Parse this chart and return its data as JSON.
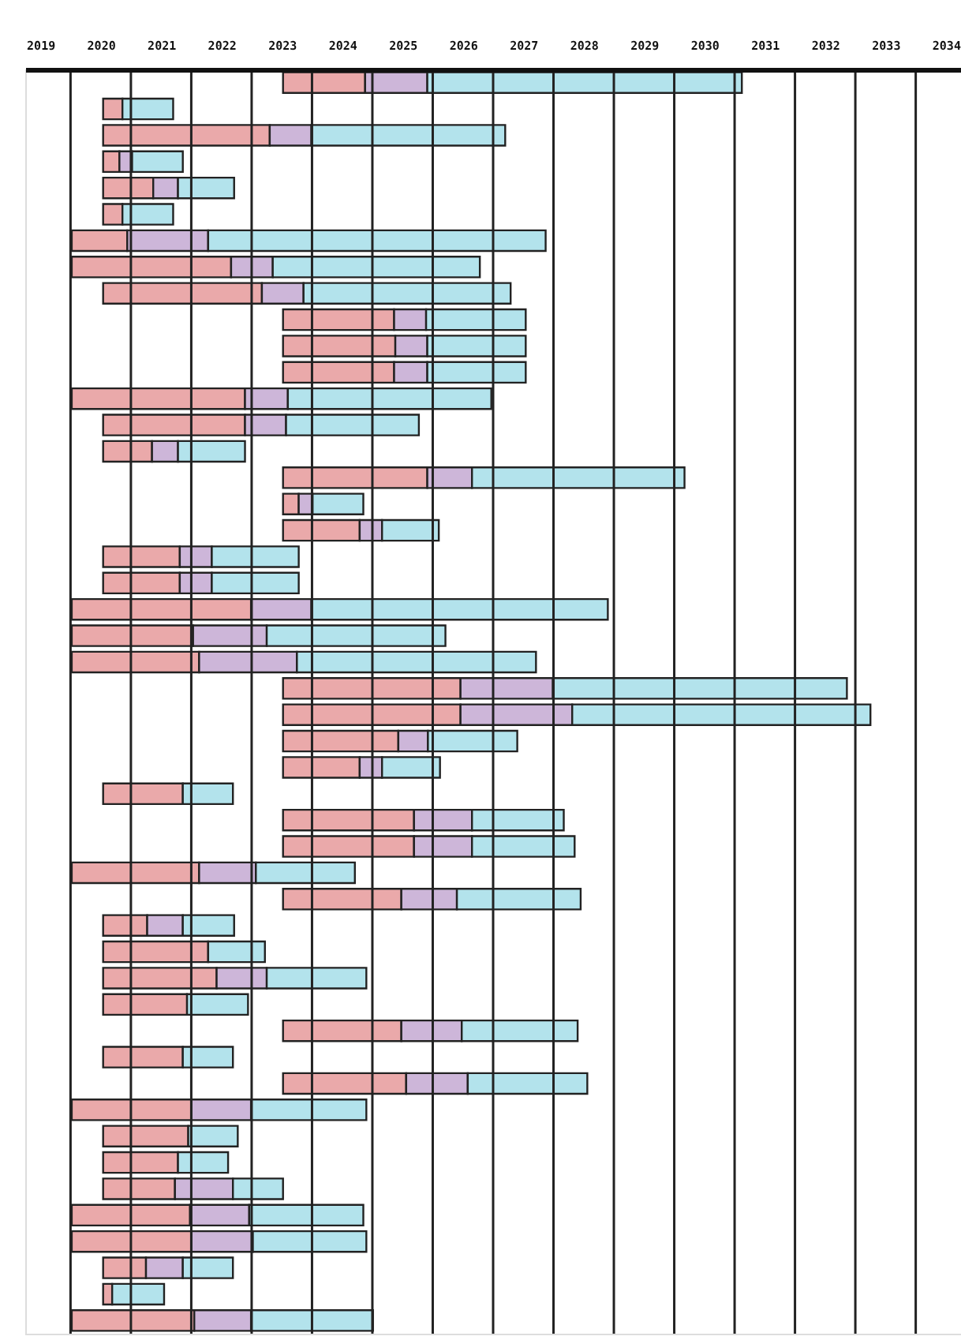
{
  "chart_data": {
    "type": "bar",
    "orientation": "horizontal",
    "categories": [
      null,
      null,
      null,
      null,
      null,
      null,
      null,
      null,
      null,
      null,
      null,
      null,
      null,
      null,
      null,
      null,
      null,
      null,
      null,
      null,
      null,
      null,
      null,
      null,
      null,
      null,
      null,
      null,
      null,
      null,
      null,
      null,
      null,
      null,
      null,
      null,
      null,
      null,
      null,
      null,
      null,
      null,
      null,
      null,
      null,
      null,
      null,
      null
    ],
    "series": [
      {
        "color": "#eaa9aa",
        "base": [
          2023.02,
          2020.04,
          2020.04,
          2020.04,
          2020.04,
          2020.04,
          2019.52,
          2019.52,
          2020.04,
          2023.02,
          2023.02,
          2023.02,
          2019.52,
          2020.04,
          2020.04,
          2023.02,
          2023.02,
          2023.02,
          2020.04,
          2020.04,
          2019.52,
          2019.52,
          2019.52,
          2023.02,
          2023.02,
          2023.02,
          2023.02,
          2020.04,
          2023.02,
          2023.02,
          2019.52,
          2023.02,
          2020.04,
          2020.04,
          2020.04,
          2020.04,
          2023.02,
          2020.04,
          2023.02,
          2019.52,
          2020.04,
          2020.04,
          2020.04,
          2019.52,
          2019.52,
          2020.04,
          2020.04,
          2019.52
        ],
        "values": [
          1.36,
          0.32,
          2.76,
          0.27,
          0.83,
          0.32,
          0.92,
          2.64,
          2.63,
          1.84,
          1.86,
          1.84,
          2.87,
          2.35,
          0.81,
          2.39,
          0.26,
          1.27,
          1.27,
          1.27,
          2.97,
          2.01,
          2.11,
          2.94,
          2.94,
          1.91,
          1.27,
          1.32,
          2.17,
          2.17,
          2.11,
          1.96,
          0.73,
          1.74,
          1.88,
          1.39,
          1.96,
          1.32,
          2.04,
          1.98,
          1.41,
          1.24,
          1.19,
          1.96,
          1.98,
          0.71,
          0.15,
          2.03
        ]
      },
      {
        "color": "#cdb6d9",
        "base": [
          2024.38,
          null,
          2022.8,
          2020.31,
          2020.87,
          null,
          2020.44,
          2022.16,
          2022.67,
          2024.86,
          2024.88,
          2024.86,
          2022.39,
          2022.39,
          2020.85,
          2025.41,
          2023.28,
          2024.29,
          2021.31,
          2021.31,
          2022.49,
          2021.53,
          2021.63,
          2025.96,
          2025.96,
          2024.93,
          2024.29,
          null,
          2025.19,
          2025.19,
          2021.63,
          2024.98,
          2020.77,
          null,
          2021.92,
          null,
          2024.98,
          null,
          2025.06,
          2021.5,
          null,
          null,
          2021.23,
          2021.48,
          2021.5,
          2020.75,
          null,
          2021.55
        ],
        "values": [
          1.03,
          null,
          0.69,
          0.21,
          0.41,
          null,
          1.34,
          0.69,
          0.69,
          0.53,
          0.53,
          0.55,
          0.71,
          0.68,
          0.43,
          0.74,
          0.23,
          0.37,
          0.53,
          0.53,
          1.0,
          1.22,
          1.62,
          1.53,
          1.85,
          0.49,
          0.37,
          null,
          0.96,
          0.96,
          0.94,
          0.92,
          0.59,
          null,
          0.83,
          null,
          1.0,
          null,
          1.02,
          0.99,
          null,
          null,
          0.96,
          0.98,
          1.02,
          0.61,
          null,
          0.94
        ]
      },
      {
        "color": "#b3e3ec",
        "base": [
          2025.41,
          2020.36,
          2023.49,
          2020.52,
          2021.28,
          2020.36,
          2021.78,
          2022.85,
          2023.36,
          2025.39,
          2025.41,
          2025.41,
          2023.1,
          2023.07,
          2021.28,
          2026.15,
          2023.51,
          2024.66,
          2021.84,
          2021.84,
          2023.49,
          2022.75,
          2023.25,
          2027.49,
          2027.81,
          2025.42,
          2024.66,
          2021.36,
          2026.15,
          2026.15,
          2022.57,
          2025.9,
          2021.36,
          2021.78,
          2022.75,
          2021.43,
          2025.98,
          2021.36,
          2026.08,
          2022.49,
          2021.45,
          2021.28,
          2022.19,
          2022.46,
          2022.52,
          2021.36,
          2020.19,
          2022.49
        ],
        "values": [
          5.21,
          0.84,
          3.21,
          0.84,
          0.93,
          0.84,
          5.59,
          3.43,
          3.43,
          1.65,
          1.63,
          1.63,
          3.37,
          2.2,
          1.11,
          3.52,
          0.84,
          0.94,
          1.44,
          1.44,
          4.91,
          2.96,
          3.96,
          4.87,
          4.94,
          1.48,
          0.96,
          0.83,
          1.52,
          1.7,
          1.64,
          2.05,
          0.85,
          0.94,
          1.65,
          1.01,
          1.92,
          0.83,
          1.98,
          1.91,
          0.82,
          0.83,
          0.83,
          1.89,
          1.88,
          0.83,
          0.86,
          2.02
        ]
      }
    ],
    "xlim": [
      2018.75,
      2034.25
    ],
    "xticks": [
      2019,
      {
        "value": 2019.5,
        "label": null
      },
      2020,
      {
        "value": 2020.5,
        "label": null
      },
      2021,
      {
        "value": 2021.5,
        "label": null
      },
      2022,
      {
        "value": 2022.5,
        "label": null
      },
      2023,
      {
        "value": 2023.5,
        "label": null
      },
      2024,
      {
        "value": 2024.5,
        "label": null
      },
      2025,
      {
        "value": 2025.5,
        "label": null
      },
      2026,
      {
        "value": 2026.5,
        "label": null
      },
      2027,
      {
        "value": 2027.5,
        "label": null
      },
      2028,
      {
        "value": 2028.5,
        "label": null
      },
      2029,
      {
        "value": 2029.5,
        "label": null
      },
      2030,
      {
        "value": 2030.5,
        "label": null
      },
      2031,
      {
        "value": 2031.5,
        "label": null
      },
      2032,
      {
        "value": 2032.5,
        "label": null
      },
      2033,
      {
        "value": 2033.5,
        "label": null
      },
      2034
    ],
    "grid": "x"
  }
}
